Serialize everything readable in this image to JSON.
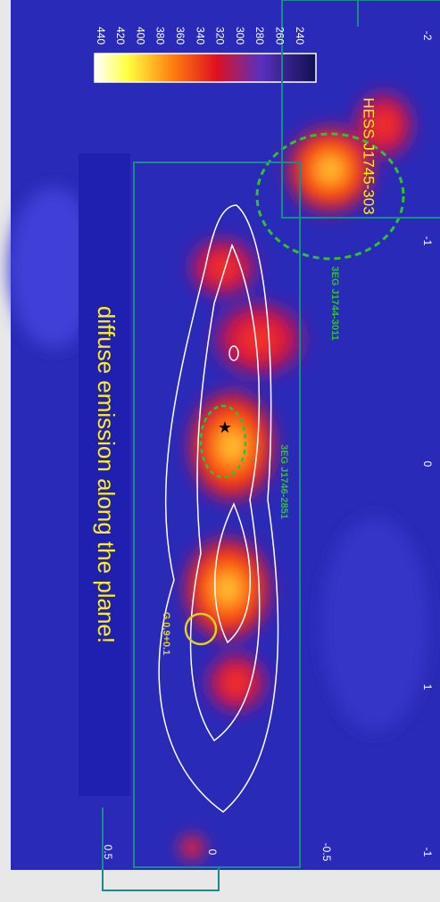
{
  "banner": "diffuse emission along the plane!",
  "sources": {
    "hess": "HESS J1745-303",
    "egret_a": "3EG J1744-3011",
    "egret_b": "3EG J1746-2851",
    "snr": "G 0.9+0.1"
  },
  "colorbar": {
    "ticks": [
      "440",
      "420",
      "400",
      "380",
      "360",
      "340",
      "320",
      "300",
      "280",
      "260",
      "240"
    ]
  },
  "longitude_ticks": [
    "-2",
    "-1",
    "0",
    "1"
  ],
  "latitude_ticks": [
    "0.5",
    "0",
    "-0.5",
    "-1"
  ]
}
